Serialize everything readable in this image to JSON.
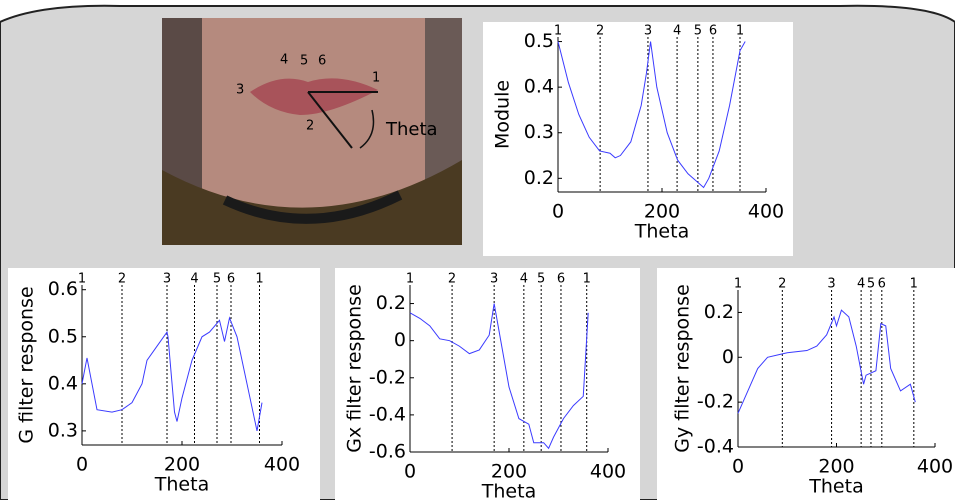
{
  "image": {
    "annotations": [
      "1",
      "2",
      "3",
      "4",
      "5",
      "6",
      "Theta"
    ]
  },
  "chart_data": [
    {
      "type": "line",
      "xlabel": "Theta",
      "ylabel": "Module",
      "color": "#3b3bff",
      "x": [
        0,
        20,
        40,
        60,
        80,
        100,
        110,
        120,
        140,
        160,
        170,
        178,
        190,
        210,
        230,
        250,
        270,
        280,
        290,
        310,
        330,
        350,
        360
      ],
      "values": [
        0.5,
        0.41,
        0.34,
        0.29,
        0.26,
        0.255,
        0.245,
        0.25,
        0.28,
        0.36,
        0.43,
        0.5,
        0.4,
        0.3,
        0.24,
        0.21,
        0.19,
        0.18,
        0.2,
        0.26,
        0.36,
        0.48,
        0.5
      ],
      "xlim": [
        0,
        400
      ],
      "xticks": [
        0,
        200,
        400
      ],
      "ylim": [
        0.17,
        0.51
      ],
      "yticks": [
        0.2,
        0.3,
        0.4,
        0.5
      ],
      "markers": [
        {
          "x": 0,
          "label": "1"
        },
        {
          "x": 81,
          "label": "2"
        },
        {
          "x": 173,
          "label": "3"
        },
        {
          "x": 229,
          "label": "4"
        },
        {
          "x": 269,
          "label": "5"
        },
        {
          "x": 298,
          "label": "6"
        },
        {
          "x": 350,
          "label": "1"
        }
      ]
    },
    {
      "type": "line",
      "xlabel": "Theta",
      "ylabel": "G filter response",
      "color": "#3b3bff",
      "x": [
        0,
        10,
        30,
        60,
        80,
        100,
        120,
        130,
        150,
        170,
        172,
        185,
        190,
        200,
        220,
        240,
        255,
        275,
        285,
        295,
        310,
        330,
        350,
        360
      ],
      "values": [
        0.4,
        0.455,
        0.345,
        0.34,
        0.345,
        0.36,
        0.4,
        0.45,
        0.48,
        0.51,
        0.5,
        0.34,
        0.32,
        0.37,
        0.45,
        0.5,
        0.51,
        0.535,
        0.49,
        0.54,
        0.5,
        0.4,
        0.3,
        0.36
      ],
      "xlim": [
        0,
        400
      ],
      "xticks": [
        0,
        200,
        400
      ],
      "ylim": [
        0.27,
        0.61
      ],
      "yticks": [
        0.3,
        0.4,
        0.5,
        0.6
      ],
      "markers": [
        {
          "x": 0,
          "label": "1"
        },
        {
          "x": 80,
          "label": "2"
        },
        {
          "x": 170,
          "label": "3"
        },
        {
          "x": 225,
          "label": "4"
        },
        {
          "x": 270,
          "label": "5"
        },
        {
          "x": 298,
          "label": "6"
        },
        {
          "x": 355,
          "label": "1"
        }
      ]
    },
    {
      "type": "line",
      "xlabel": "Theta",
      "ylabel": "Gx filter response",
      "color": "#3b3bff",
      "x": [
        0,
        20,
        40,
        60,
        80,
        100,
        120,
        140,
        160,
        170,
        180,
        200,
        220,
        240,
        250,
        270,
        280,
        290,
        310,
        330,
        350,
        360
      ],
      "values": [
        0.15,
        0.12,
        0.08,
        0.01,
        0.0,
        -0.03,
        -0.07,
        -0.05,
        0.03,
        0.2,
        0.05,
        -0.25,
        -0.42,
        -0.45,
        -0.55,
        -0.55,
        -0.58,
        -0.52,
        -0.42,
        -0.35,
        -0.3,
        0.15
      ],
      "xlim": [
        0,
        400
      ],
      "xticks": [
        0,
        200,
        400
      ],
      "ylim": [
        -0.6,
        0.3
      ],
      "yticks": [
        0.2,
        0,
        -0.2,
        -0.4,
        -0.6
      ],
      "markers": [
        {
          "x": 0,
          "label": "1"
        },
        {
          "x": 85,
          "label": "2"
        },
        {
          "x": 170,
          "label": "3"
        },
        {
          "x": 230,
          "label": "4"
        },
        {
          "x": 265,
          "label": "5"
        },
        {
          "x": 305,
          "label": "6"
        },
        {
          "x": 357,
          "label": "1"
        }
      ]
    },
    {
      "type": "line",
      "xlabel": "Theta",
      "ylabel": "Gy filter response",
      "color": "#3b3bff",
      "x": [
        0,
        20,
        40,
        60,
        80,
        100,
        140,
        160,
        180,
        195,
        200,
        210,
        225,
        240,
        255,
        260,
        280,
        290,
        300,
        310,
        330,
        350,
        360
      ],
      "values": [
        -0.25,
        -0.15,
        -0.05,
        0.0,
        0.01,
        0.02,
        0.03,
        0.05,
        0.1,
        0.18,
        0.14,
        0.21,
        0.18,
        0.05,
        -0.12,
        -0.08,
        -0.06,
        0.15,
        0.14,
        -0.05,
        -0.15,
        -0.12,
        -0.2
      ],
      "xlim": [
        0,
        400
      ],
      "xticks": [
        0,
        200,
        400
      ],
      "ylim": [
        -0.4,
        0.3
      ],
      "yticks": [
        0.2,
        0,
        -0.2,
        -0.4
      ],
      "markers": [
        {
          "x": 0,
          "label": "1"
        },
        {
          "x": 90,
          "label": "2"
        },
        {
          "x": 190,
          "label": "3"
        },
        {
          "x": 250,
          "label": "4"
        },
        {
          "x": 270,
          "label": "5"
        },
        {
          "x": 292,
          "label": "6"
        },
        {
          "x": 357,
          "label": "1"
        }
      ]
    }
  ]
}
